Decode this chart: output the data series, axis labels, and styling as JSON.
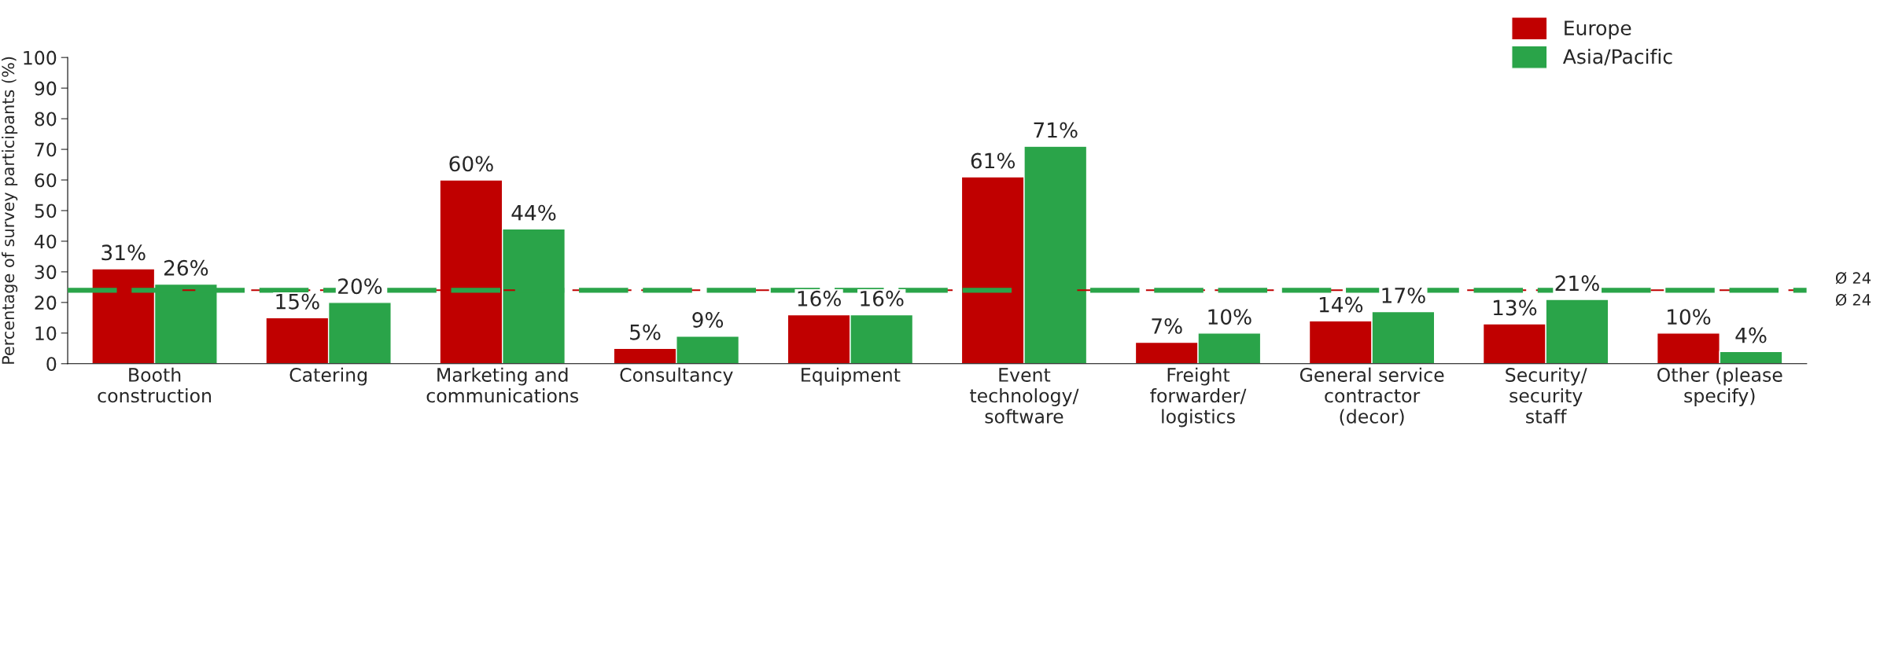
{
  "chart_data": {
    "type": "bar",
    "ylabel": "Percentage of survey participants (%)",
    "categories": [
      "Booth\nconstruction",
      "Catering",
      "Marketing and\ncommunications",
      "Consultancy",
      "Equipment",
      "Event\ntechnology/\nsoftware",
      "Freight\nforwarder/\nlogistics",
      "General service\ncontractor\n(decor)",
      "Security/\nsecurity\nstaff",
      "Other (please\nspecify)"
    ],
    "series": [
      {
        "name": "Europe",
        "color": "#c00000",
        "values": [
          31,
          15,
          60,
          5,
          16,
          61,
          7,
          14,
          13,
          10
        ],
        "value_labels": [
          "31%",
          "15%",
          "60%",
          "5%",
          "16%",
          "61%",
          "7%",
          "14%",
          "13%",
          "10%"
        ]
      },
      {
        "name": "Asia/Pacific",
        "color": "#2aa449",
        "values": [
          26,
          20,
          44,
          9,
          16,
          71,
          10,
          17,
          21,
          4
        ],
        "value_labels": [
          "26%",
          "20%",
          "44%",
          "9%",
          "16%",
          "71%",
          "10%",
          "17%",
          "21%",
          "4%"
        ]
      }
    ],
    "ylim": [
      0,
      100
    ],
    "yticks": [
      0,
      10,
      20,
      30,
      40,
      50,
      60,
      70,
      80,
      90,
      100
    ],
    "ref_lines": [
      {
        "axis": "y",
        "value": 24,
        "label": "Ø 24",
        "color": "#c00000",
        "line_style": "dashed"
      },
      {
        "axis": "y",
        "value": 24,
        "label": "Ø 24",
        "color": "#2aa449",
        "line_style": "dashed"
      }
    ],
    "grid": false,
    "legend": "top right"
  }
}
